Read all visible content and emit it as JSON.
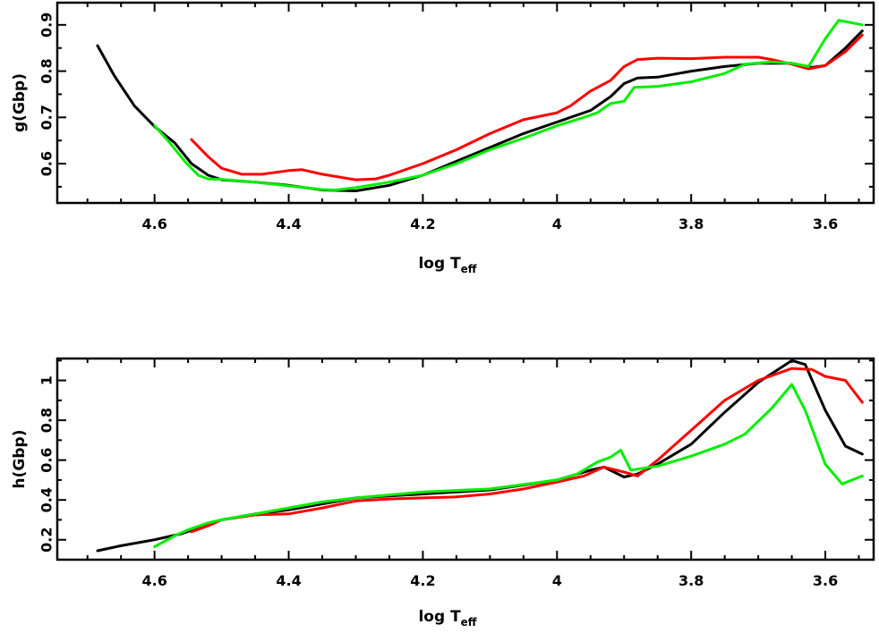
{
  "chart_data": [
    {
      "type": "line",
      "xlabel": "log T",
      "xlabel_sub": "eff",
      "ylabel": "g(Gbp)",
      "xlim": [
        4.745,
        3.528
      ],
      "ylim": [
        0.515,
        0.948
      ],
      "x_ticks": [
        {
          "value": 4.6,
          "label": "4.6"
        },
        {
          "value": 4.4,
          "label": "4.4"
        },
        {
          "value": 4.2,
          "label": "4.2"
        },
        {
          "value": 4.0,
          "label": "4"
        },
        {
          "value": 3.8,
          "label": "3.8"
        },
        {
          "value": 3.6,
          "label": "3.6"
        }
      ],
      "y_ticks": [
        {
          "value": 0.6,
          "label": "0.6"
        },
        {
          "value": 0.7,
          "label": "0.7"
        },
        {
          "value": 0.8,
          "label": "0.8"
        },
        {
          "value": 0.9,
          "label": "0.9"
        }
      ],
      "series": [
        {
          "color": "#000000",
          "points": [
            [
              4.685,
              0.855
            ],
            [
              4.66,
              0.79
            ],
            [
              4.63,
              0.725
            ],
            [
              4.6,
              0.68
            ],
            [
              4.57,
              0.645
            ],
            [
              4.545,
              0.6
            ],
            [
              4.52,
              0.575
            ],
            [
              4.5,
              0.565
            ],
            [
              4.45,
              0.56
            ],
            [
              4.4,
              0.553
            ],
            [
              4.35,
              0.543
            ],
            [
              4.3,
              0.541
            ],
            [
              4.25,
              0.553
            ],
            [
              4.2,
              0.575
            ],
            [
              4.15,
              0.605
            ],
            [
              4.1,
              0.635
            ],
            [
              4.05,
              0.665
            ],
            [
              4.0,
              0.69
            ],
            [
              3.95,
              0.715
            ],
            [
              3.92,
              0.745
            ],
            [
              3.9,
              0.773
            ],
            [
              3.88,
              0.785
            ],
            [
              3.85,
              0.787
            ],
            [
              3.8,
              0.8
            ],
            [
              3.75,
              0.81
            ],
            [
              3.7,
              0.817
            ],
            [
              3.65,
              0.817
            ],
            [
              3.62,
              0.808
            ],
            [
              3.6,
              0.812
            ],
            [
              3.57,
              0.85
            ],
            [
              3.545,
              0.887
            ]
          ]
        },
        {
          "color": "#ff0000",
          "points": [
            [
              4.545,
              0.652
            ],
            [
              4.52,
              0.615
            ],
            [
              4.5,
              0.59
            ],
            [
              4.47,
              0.577
            ],
            [
              4.44,
              0.577
            ],
            [
              4.4,
              0.585
            ],
            [
              4.38,
              0.587
            ],
            [
              4.35,
              0.577
            ],
            [
              4.3,
              0.565
            ],
            [
              4.27,
              0.567
            ],
            [
              4.25,
              0.575
            ],
            [
              4.2,
              0.6
            ],
            [
              4.15,
              0.63
            ],
            [
              4.1,
              0.665
            ],
            [
              4.05,
              0.695
            ],
            [
              4.0,
              0.71
            ],
            [
              3.98,
              0.725
            ],
            [
              3.95,
              0.757
            ],
            [
              3.92,
              0.78
            ],
            [
              3.9,
              0.81
            ],
            [
              3.88,
              0.825
            ],
            [
              3.85,
              0.828
            ],
            [
              3.8,
              0.827
            ],
            [
              3.75,
              0.83
            ],
            [
              3.7,
              0.83
            ],
            [
              3.68,
              0.825
            ],
            [
              3.65,
              0.815
            ],
            [
              3.625,
              0.805
            ],
            [
              3.6,
              0.812
            ],
            [
              3.57,
              0.842
            ],
            [
              3.545,
              0.878
            ]
          ]
        },
        {
          "color": "#00ee00",
          "points": [
            [
              4.6,
              0.682
            ],
            [
              4.58,
              0.65
            ],
            [
              4.555,
              0.605
            ],
            [
              4.535,
              0.575
            ],
            [
              4.52,
              0.567
            ],
            [
              4.5,
              0.566
            ],
            [
              4.45,
              0.56
            ],
            [
              4.4,
              0.552
            ],
            [
              4.35,
              0.544
            ],
            [
              4.33,
              0.543
            ],
            [
              4.3,
              0.548
            ],
            [
              4.25,
              0.56
            ],
            [
              4.2,
              0.575
            ],
            [
              4.15,
              0.6
            ],
            [
              4.1,
              0.63
            ],
            [
              4.05,
              0.655
            ],
            [
              4.0,
              0.682
            ],
            [
              3.96,
              0.7
            ],
            [
              3.94,
              0.71
            ],
            [
              3.92,
              0.73
            ],
            [
              3.9,
              0.735
            ],
            [
              3.885,
              0.765
            ],
            [
              3.85,
              0.767
            ],
            [
              3.8,
              0.777
            ],
            [
              3.75,
              0.795
            ],
            [
              3.72,
              0.815
            ],
            [
              3.68,
              0.82
            ],
            [
              3.65,
              0.817
            ],
            [
              3.625,
              0.81
            ],
            [
              3.6,
              0.87
            ],
            [
              3.58,
              0.91
            ],
            [
              3.545,
              0.9
            ]
          ]
        }
      ]
    },
    {
      "type": "line",
      "xlabel": "log T",
      "xlabel_sub": "eff",
      "ylabel": "h(Gbp)",
      "xlim": [
        4.745,
        3.528
      ],
      "ylim": [
        0.1,
        1.11
      ],
      "x_ticks": [
        {
          "value": 4.6,
          "label": "4.6"
        },
        {
          "value": 4.4,
          "label": "4.4"
        },
        {
          "value": 4.2,
          "label": "4.2"
        },
        {
          "value": 4.0,
          "label": "4"
        },
        {
          "value": 3.8,
          "label": "3.8"
        },
        {
          "value": 3.6,
          "label": "3.6"
        }
      ],
      "y_ticks": [
        {
          "value": 0.2,
          "label": "0.2"
        },
        {
          "value": 0.4,
          "label": "0.4"
        },
        {
          "value": 0.6,
          "label": "0.6"
        },
        {
          "value": 0.8,
          "label": "0.8"
        },
        {
          "value": 1.0,
          "label": "1"
        }
      ],
      "series": [
        {
          "color": "#000000",
          "points": [
            [
              4.685,
              0.145
            ],
            [
              4.65,
              0.17
            ],
            [
              4.6,
              0.2
            ],
            [
              4.56,
              0.23
            ],
            [
              4.52,
              0.275
            ],
            [
              4.5,
              0.3
            ],
            [
              4.45,
              0.33
            ],
            [
              4.4,
              0.35
            ],
            [
              4.35,
              0.38
            ],
            [
              4.3,
              0.41
            ],
            [
              4.2,
              0.43
            ],
            [
              4.1,
              0.45
            ],
            [
              4.0,
              0.5
            ],
            [
              3.95,
              0.55
            ],
            [
              3.93,
              0.565
            ],
            [
              3.9,
              0.515
            ],
            [
              3.88,
              0.53
            ],
            [
              3.85,
              0.58
            ],
            [
              3.8,
              0.68
            ],
            [
              3.75,
              0.84
            ],
            [
              3.7,
              0.99
            ],
            [
              3.65,
              1.1
            ],
            [
              3.63,
              1.08
            ],
            [
              3.6,
              0.85
            ],
            [
              3.57,
              0.67
            ],
            [
              3.545,
              0.63
            ]
          ]
        },
        {
          "color": "#ff0000",
          "points": [
            [
              4.545,
              0.24
            ],
            [
              4.52,
              0.27
            ],
            [
              4.5,
              0.3
            ],
            [
              4.45,
              0.325
            ],
            [
              4.4,
              0.33
            ],
            [
              4.35,
              0.36
            ],
            [
              4.3,
              0.395
            ],
            [
              4.25,
              0.405
            ],
            [
              4.2,
              0.41
            ],
            [
              4.15,
              0.415
            ],
            [
              4.1,
              0.43
            ],
            [
              4.05,
              0.455
            ],
            [
              4.0,
              0.49
            ],
            [
              3.96,
              0.52
            ],
            [
              3.93,
              0.565
            ],
            [
              3.9,
              0.54
            ],
            [
              3.88,
              0.52
            ],
            [
              3.85,
              0.6
            ],
            [
              3.8,
              0.75
            ],
            [
              3.75,
              0.9
            ],
            [
              3.7,
              1.0
            ],
            [
              3.65,
              1.06
            ],
            [
              3.62,
              1.055
            ],
            [
              3.6,
              1.02
            ],
            [
              3.57,
              1.0
            ],
            [
              3.545,
              0.89
            ]
          ]
        },
        {
          "color": "#00ee00",
          "points": [
            [
              4.6,
              0.165
            ],
            [
              4.57,
              0.22
            ],
            [
              4.55,
              0.25
            ],
            [
              4.52,
              0.285
            ],
            [
              4.5,
              0.3
            ],
            [
              4.45,
              0.33
            ],
            [
              4.4,
              0.36
            ],
            [
              4.35,
              0.39
            ],
            [
              4.3,
              0.41
            ],
            [
              4.2,
              0.44
            ],
            [
              4.1,
              0.455
            ],
            [
              4.0,
              0.5
            ],
            [
              3.97,
              0.53
            ],
            [
              3.94,
              0.59
            ],
            [
              3.92,
              0.615
            ],
            [
              3.905,
              0.65
            ],
            [
              3.89,
              0.55
            ],
            [
              3.85,
              0.57
            ],
            [
              3.8,
              0.62
            ],
            [
              3.75,
              0.68
            ],
            [
              3.72,
              0.73
            ],
            [
              3.68,
              0.86
            ],
            [
              3.65,
              0.98
            ],
            [
              3.63,
              0.85
            ],
            [
              3.6,
              0.58
            ],
            [
              3.575,
              0.48
            ],
            [
              3.545,
              0.52
            ]
          ]
        }
      ]
    }
  ]
}
